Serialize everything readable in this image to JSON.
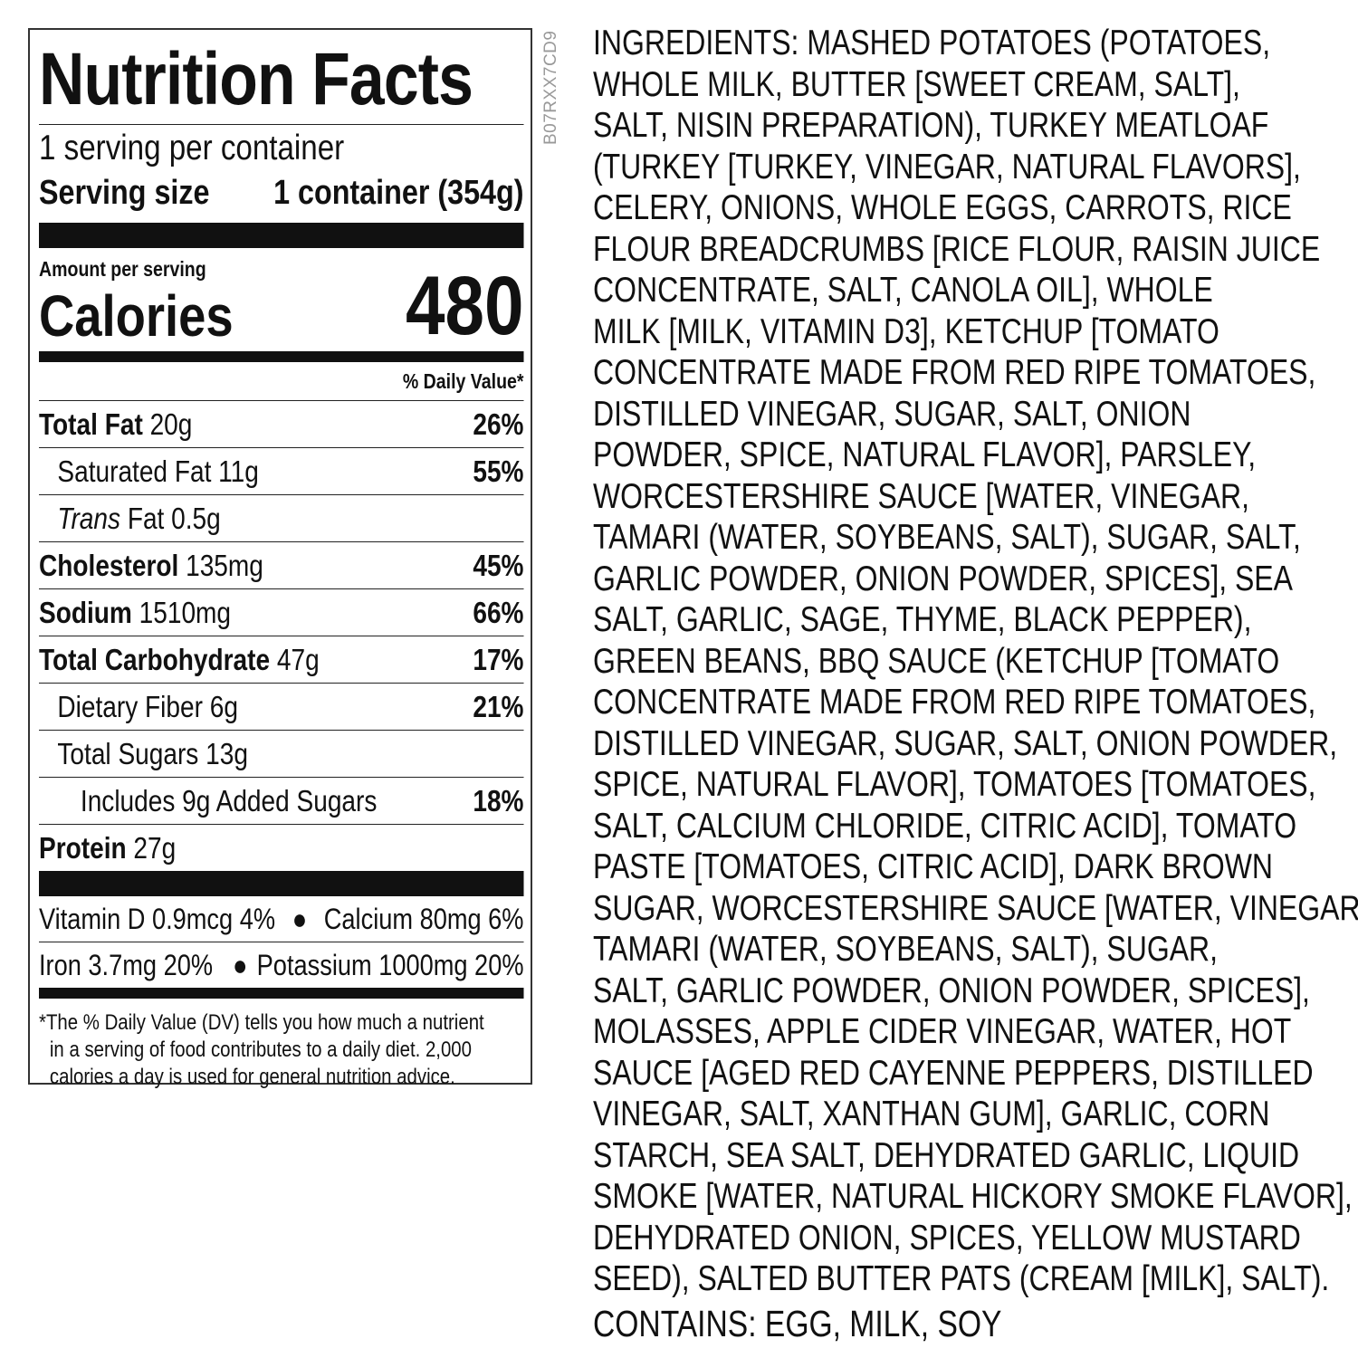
{
  "label": {
    "title": "Nutrition Facts",
    "servings": "1 serving per container",
    "serving_size_label": "Serving size",
    "serving_size_value": "1 container (354g)",
    "amount_per_serving": "Amount per serving",
    "calories_label": "Calories",
    "calories_value": "480",
    "daily_value_header": "% Daily Value*",
    "nutrients": [
      {
        "name": "Total Fat",
        "amount": "20g",
        "dv": "26%"
      },
      {
        "name": "Saturated Fat",
        "amount": "11g",
        "dv": "55%"
      },
      {
        "name": "Trans",
        "name_suffix": "Fat",
        "amount": "0.5g",
        "dv": ""
      },
      {
        "name": "Cholesterol",
        "amount": "135mg",
        "dv": "45%"
      },
      {
        "name": "Sodium",
        "amount": "1510mg",
        "dv": "66%"
      },
      {
        "name": "Total Carbohydrate",
        "amount": "47g",
        "dv": "17%"
      },
      {
        "name": "Dietary Fiber",
        "amount": "6g",
        "dv": "21%"
      },
      {
        "name": "Total Sugars",
        "amount": "13g",
        "dv": ""
      },
      {
        "name": "Includes 9g Added Sugars",
        "amount": "",
        "dv": "18%"
      },
      {
        "name": "Protein",
        "amount": "27g",
        "dv": ""
      }
    ],
    "minerals": [
      {
        "left": "Vitamin D 0.9mcg 4%",
        "right": "Calcium 80mg 6%"
      },
      {
        "left": "Iron 3.7mg 20%",
        "right": "Potassium 1000mg 20%"
      }
    ],
    "footnote": [
      "*The % Daily Value (DV) tells you how much a nutrient",
      "in a serving of food contributes to a daily diet. 2,000",
      "calories a day is used for general nutrition advice."
    ]
  },
  "product_code": "B07RXX7CD9",
  "ingredients": {
    "label": "INGREDIENTS:",
    "lines": [
      " MASHED POTATOES (POTATOES,",
      "WHOLE MILK, BUTTER [SWEET CREAM, SALT],",
      "SALT, NISIN PREPARATION), TURKEY MEATLOAF",
      "(TURKEY [TURKEY, VINEGAR, NATURAL FLAVORS],",
      "CELERY, ONIONS, WHOLE EGGS, CARROTS, RICE",
      "FLOUR BREADCRUMBS [RICE FLOUR, RAISIN JUICE",
      "CONCENTRATE, SALT, CANOLA OIL], WHOLE",
      "MILK [MILK, VITAMIN D3], KETCHUP [TOMATO",
      "CONCENTRATE MADE FROM RED RIPE TOMATOES,",
      "DISTILLED VINEGAR, SUGAR, SALT, ONION",
      "POWDER, SPICE, NATURAL FLAVOR], PARSLEY,",
      "WORCESTERSHIRE SAUCE [WATER, VINEGAR,",
      "TAMARI (WATER, SOYBEANS, SALT), SUGAR, SALT,",
      "GARLIC POWDER, ONION POWDER, SPICES], SEA",
      "SALT, GARLIC, SAGE, THYME, BLACK PEPPER),",
      "GREEN BEANS, BBQ SAUCE (KETCHUP [TOMATO",
      "CONCENTRATE MADE FROM RED RIPE TOMATOES,",
      "DISTILLED VINEGAR, SUGAR, SALT, ONION POWDER,",
      "SPICE, NATURAL FLAVOR], TOMATOES [TOMATOES,",
      "SALT, CALCIUM CHLORIDE, CITRIC ACID], TOMATO",
      "PASTE [TOMATOES, CITRIC ACID], DARK BROWN",
      "SUGAR, WORCESTERSHIRE SAUCE [WATER, VINEGAR,",
      "TAMARI (WATER, SOYBEANS, SALT), SUGAR,",
      "SALT, GARLIC POWDER, ONION POWDER, SPICES],",
      "MOLASSES, APPLE CIDER VINEGAR, WATER, HOT",
      "SAUCE [AGED RED CAYENNE PEPPERS, DISTILLED",
      "VINEGAR, SALT, XANTHAN GUM], GARLIC, CORN",
      "STARCH, SEA SALT, DEHYDRATED GARLIC, LIQUID",
      "SMOKE [WATER, NATURAL HICKORY SMOKE FLAVOR],",
      "DEHYDRATED ONION, SPICES, YELLOW MUSTARD",
      "SEED), SALTED BUTTER PATS (CREAM [MILK], SALT)."
    ],
    "contains": "CONTAINS: EGG, MILK, SOY"
  }
}
